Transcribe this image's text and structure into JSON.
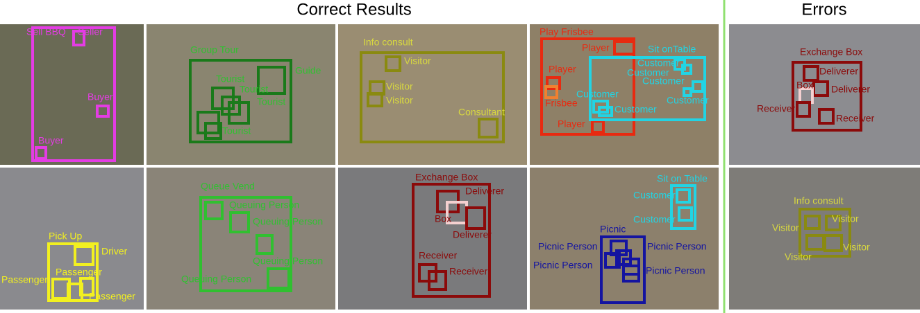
{
  "header": {
    "correct": "Correct Results",
    "errors": "Errors"
  },
  "panels": [
    {
      "labels": [
        "Sell BBQ",
        "Seller",
        "Buyer",
        "Buyer"
      ]
    },
    {
      "labels": [
        "Group Tour",
        "Guide",
        "Tourist",
        "Tourist",
        "Tourist",
        "Tourist"
      ]
    },
    {
      "labels": [
        "Info consult",
        "Visitor",
        "Visitor",
        "Visitor",
        "Consultant"
      ]
    },
    {
      "labels": [
        "Play Frisbee",
        "Player",
        "Player",
        "Frisbee",
        "Player",
        "Sit onTable",
        "Customer",
        "Customer",
        "Customer",
        "Customer",
        "Customer",
        "Customer"
      ]
    },
    {
      "labels": [
        "Exchange Box",
        "Deliverer",
        "Deliverer",
        "Box",
        "Receiver",
        "Receiver"
      ]
    },
    {
      "labels": [
        "Pick Up",
        "Driver",
        "Passenger",
        "Passenger",
        "Passenger"
      ]
    },
    {
      "labels": [
        "Queue Vend",
        "Queuing Person",
        "Queuing Person",
        "Queuing Person",
        "Queuing Person"
      ]
    },
    {
      "labels": [
        "Exchange Box",
        "Deliverer",
        "Box",
        "Deliverer",
        "Receiver",
        "Receiver"
      ]
    },
    {
      "labels": [
        "Sit on Table",
        "Customer",
        "Customer",
        "Picnic",
        "Picnic Person",
        "Picnic Person",
        "Picnic Person",
        "Picnic Person"
      ]
    },
    {
      "labels": [
        "Info consult",
        "Visitor",
        "Visitor",
        "Visitor",
        "Visitor"
      ]
    }
  ]
}
